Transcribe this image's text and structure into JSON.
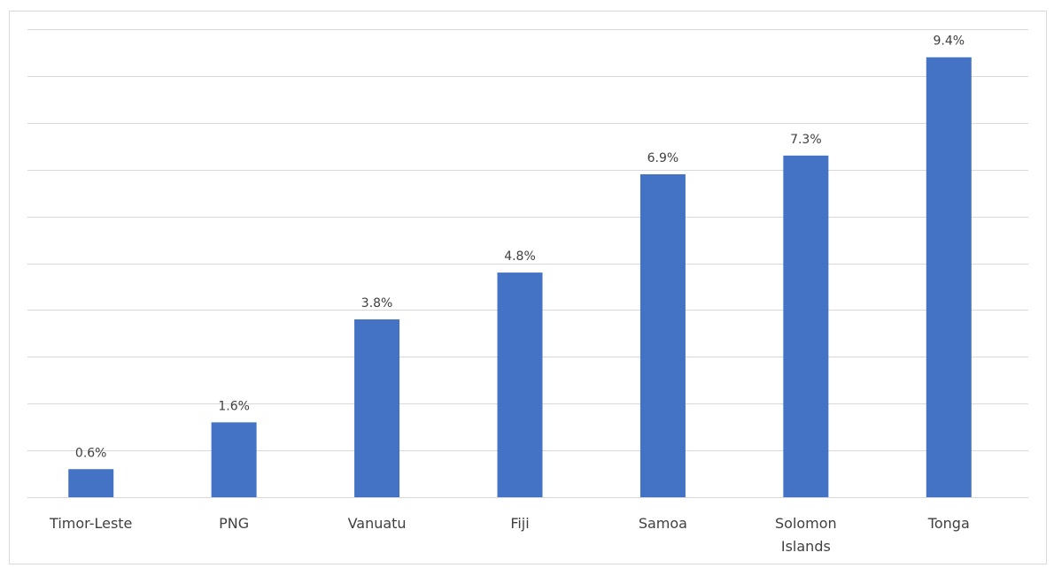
{
  "chart_data": {
    "type": "bar",
    "title": "",
    "xlabel": "",
    "ylabel": "",
    "categories": [
      "Timor-Leste",
      "PNG",
      "Vanuatu",
      "Fiji",
      "Samoa",
      "Solomon Islands",
      "Tonga"
    ],
    "category_lines": [
      [
        "Timor-Leste"
      ],
      [
        "PNG"
      ],
      [
        "Vanuatu"
      ],
      [
        "Fiji"
      ],
      [
        "Samoa"
      ],
      [
        "Solomon",
        "Islands"
      ],
      [
        "Tonga"
      ]
    ],
    "values": [
      0.6,
      1.6,
      3.8,
      4.8,
      6.9,
      7.3,
      9.4
    ],
    "data_labels": [
      "0.6%",
      "1.6%",
      "3.8%",
      "4.8%",
      "6.9%",
      "7.3%",
      "9.4%"
    ],
    "ylim": [
      0,
      10
    ],
    "gridlines": 10,
    "grid": true,
    "legend": "none",
    "colors": {
      "bar": "#4472c4",
      "grid": "#d9d9d9",
      "text": "#404040"
    }
  }
}
